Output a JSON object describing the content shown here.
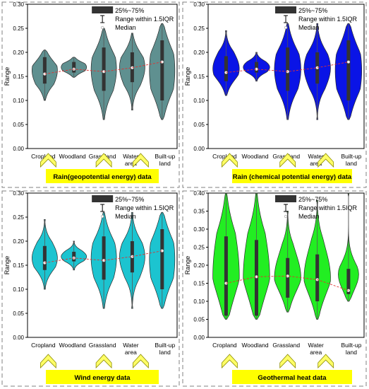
{
  "legend": {
    "box_label": "25%~75%",
    "whisker_label": "Range within 1.5IQR",
    "median_label": "Median"
  },
  "colors": {
    "panel_border": "#808080",
    "label_box": "#ffff00",
    "chevron_fill": "#ffff66",
    "chevron_stroke": "#8c8c00",
    "median_line": "#e03030",
    "iqr_bar": "#333333"
  },
  "chart_data": [
    {
      "type": "violin",
      "title": "Rain(geopotential energy) data",
      "ylabel": "Range",
      "ylim": [
        0.0,
        0.3
      ],
      "yticks": [
        0.0,
        0.05,
        0.1,
        0.15,
        0.2,
        0.25,
        0.3
      ],
      "categories": [
        "Cropland",
        "Woodland",
        "Grassland",
        "Water area",
        "Built-up land"
      ],
      "fill": "#5f9090",
      "q1": [
        0.135,
        0.158,
        0.12,
        0.138,
        0.1
      ],
      "median": [
        0.155,
        0.165,
        0.16,
        0.168,
        0.18
      ],
      "q3": [
        0.19,
        0.18,
        0.21,
        0.2,
        0.225
      ],
      "min": [
        0.1,
        0.148,
        0.06,
        0.08,
        0.06
      ],
      "max": [
        0.205,
        0.19,
        0.25,
        0.24,
        0.26
      ],
      "grid": false,
      "legend_position": "top-right"
    },
    {
      "type": "violin",
      "title": "Rain (chemical potential energy) data",
      "ylabel": "Range",
      "ylim": [
        0.0,
        0.3
      ],
      "yticks": [
        0.0,
        0.05,
        0.1,
        0.15,
        0.2,
        0.25,
        0.3
      ],
      "categories": [
        "Cropland",
        "Woodland",
        "Grassland",
        "Water area",
        "Built-up land"
      ],
      "fill": "#0a14e6",
      "q1": [
        0.14,
        0.158,
        0.12,
        0.135,
        0.1
      ],
      "median": [
        0.158,
        0.165,
        0.16,
        0.168,
        0.18
      ],
      "q3": [
        0.192,
        0.18,
        0.21,
        0.2,
        0.225
      ],
      "min": [
        0.11,
        0.14,
        0.06,
        0.06,
        0.06
      ],
      "max": [
        0.245,
        0.2,
        0.26,
        0.26,
        0.26
      ],
      "grid": false,
      "legend_position": "top-right"
    },
    {
      "type": "violin",
      "title": "Wind energy data",
      "ylabel": "Range",
      "ylim": [
        0.0,
        0.3
      ],
      "yticks": [
        0.0,
        0.05,
        0.1,
        0.15,
        0.2,
        0.25,
        0.3
      ],
      "categories": [
        "Cropland",
        "Woodland",
        "Grassland",
        "Water area",
        "Built-up land"
      ],
      "fill": "#1cc4d0",
      "q1": [
        0.14,
        0.158,
        0.12,
        0.135,
        0.1
      ],
      "median": [
        0.155,
        0.165,
        0.16,
        0.168,
        0.18
      ],
      "q3": [
        0.19,
        0.178,
        0.21,
        0.2,
        0.225
      ],
      "min": [
        0.1,
        0.14,
        0.06,
        0.06,
        0.06
      ],
      "max": [
        0.245,
        0.2,
        0.26,
        0.26,
        0.26
      ],
      "grid": false,
      "legend_position": "top-right"
    },
    {
      "type": "violin",
      "title": "Geothermal heat data",
      "ylabel": "Range",
      "ylim": [
        0.0,
        0.4
      ],
      "yticks": [
        0.0,
        0.05,
        0.1,
        0.15,
        0.2,
        0.25,
        0.3,
        0.35,
        0.4
      ],
      "categories": [
        "Cropland",
        "Woodland",
        "Grassland",
        "Water area",
        "Built-up land"
      ],
      "fill": "#22ee22",
      "q1": [
        0.06,
        0.06,
        0.11,
        0.1,
        0.12
      ],
      "median": [
        0.15,
        0.168,
        0.17,
        0.16,
        0.13
      ],
      "q3": [
        0.28,
        0.27,
        0.22,
        0.23,
        0.19
      ],
      "min": [
        0.05,
        0.05,
        0.07,
        0.05,
        0.1
      ],
      "max": [
        0.4,
        0.4,
        0.35,
        0.38,
        0.4
      ],
      "grid": false,
      "legend_position": "top-right"
    }
  ]
}
